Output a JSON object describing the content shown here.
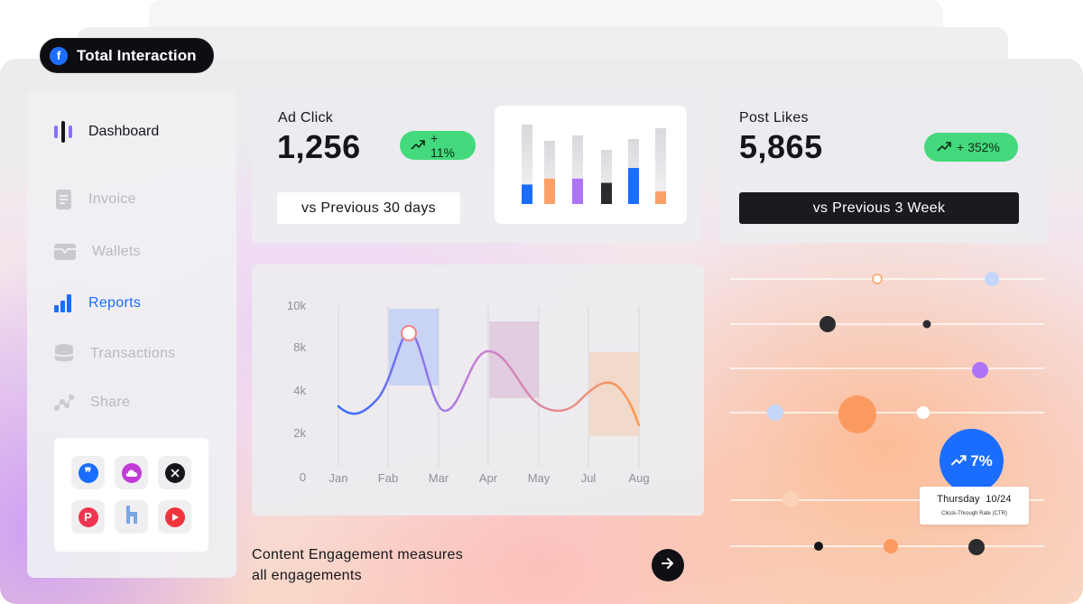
{
  "header": {
    "badge_label": "Total Interaction",
    "badge_icon": "facebook-icon"
  },
  "sidebar": {
    "brand_label": "Dashboard",
    "items": [
      {
        "label": "Invoice",
        "icon": "invoice-icon",
        "active": false
      },
      {
        "label": "Wallets",
        "icon": "wallet-icon",
        "active": false
      },
      {
        "label": "Reports",
        "icon": "reports-icon",
        "active": true
      },
      {
        "label": "Transactions",
        "icon": "database-icon",
        "active": false
      },
      {
        "label": "Share",
        "icon": "share-icon",
        "active": false
      }
    ],
    "apps": [
      {
        "icon": "quote-app-icon",
        "color": "#1a6dff"
      },
      {
        "icon": "cloud-app-icon",
        "color": "#c13bd6"
      },
      {
        "icon": "x-app-icon",
        "color": "#15151a"
      },
      {
        "icon": "pinterest-app-icon",
        "color": "#f0344f"
      },
      {
        "icon": "houzz-app-icon",
        "color": "#7aa5e6"
      },
      {
        "icon": "youtube-app-icon",
        "color": "#f0343c"
      }
    ]
  },
  "ad_click": {
    "title": "Ad Click",
    "value": "1,256",
    "trend": "+ 11%",
    "compare": "vs Previous 30 days",
    "mini_bars": [
      {
        "value": 0.46,
        "color": "#1a6dff"
      },
      {
        "value": 0.6,
        "color": "#fca06a"
      },
      {
        "value": 0.6,
        "color": "#ad74f7"
      },
      {
        "value": 0.5,
        "color": "#2c2c30"
      },
      {
        "value": 0.85,
        "color": "#1a6dff"
      },
      {
        "value": 0.3,
        "color": "#fca06a"
      }
    ]
  },
  "post_likes": {
    "title": "Post Likes",
    "value": "5,865",
    "trend": "+ 352%",
    "compare": "vs Previous 3 Week"
  },
  "chart_data": {
    "type": "line",
    "title": "",
    "xlabel": "",
    "ylabel": "",
    "y_ticks": [
      "10k",
      "8k",
      "4k",
      "2k",
      "0"
    ],
    "x_ticks": [
      "Jan",
      "Fab",
      "Mar",
      "Apr",
      "May",
      "Jul",
      "Aug"
    ],
    "grid": "vertical",
    "series": [
      {
        "values": [
          3.0,
          2.5,
          5.3,
          8.6,
          2.8,
          7.2,
          3.8,
          4.0,
          3.2
        ]
      }
    ],
    "colors": {
      "start": "#2f6bff",
      "mid": "#c57ed9",
      "end": "#ff9a4f"
    },
    "highlights": [
      "blue",
      "purple",
      "orange"
    ]
  },
  "footer": {
    "text_line1": "Content Engagement measures",
    "text_line2": "all engagements"
  },
  "ctr": {
    "value": "7%",
    "day": "Thursday",
    "date": "10/24",
    "subtitle": "Clicck-Through Rate (CTR)"
  }
}
